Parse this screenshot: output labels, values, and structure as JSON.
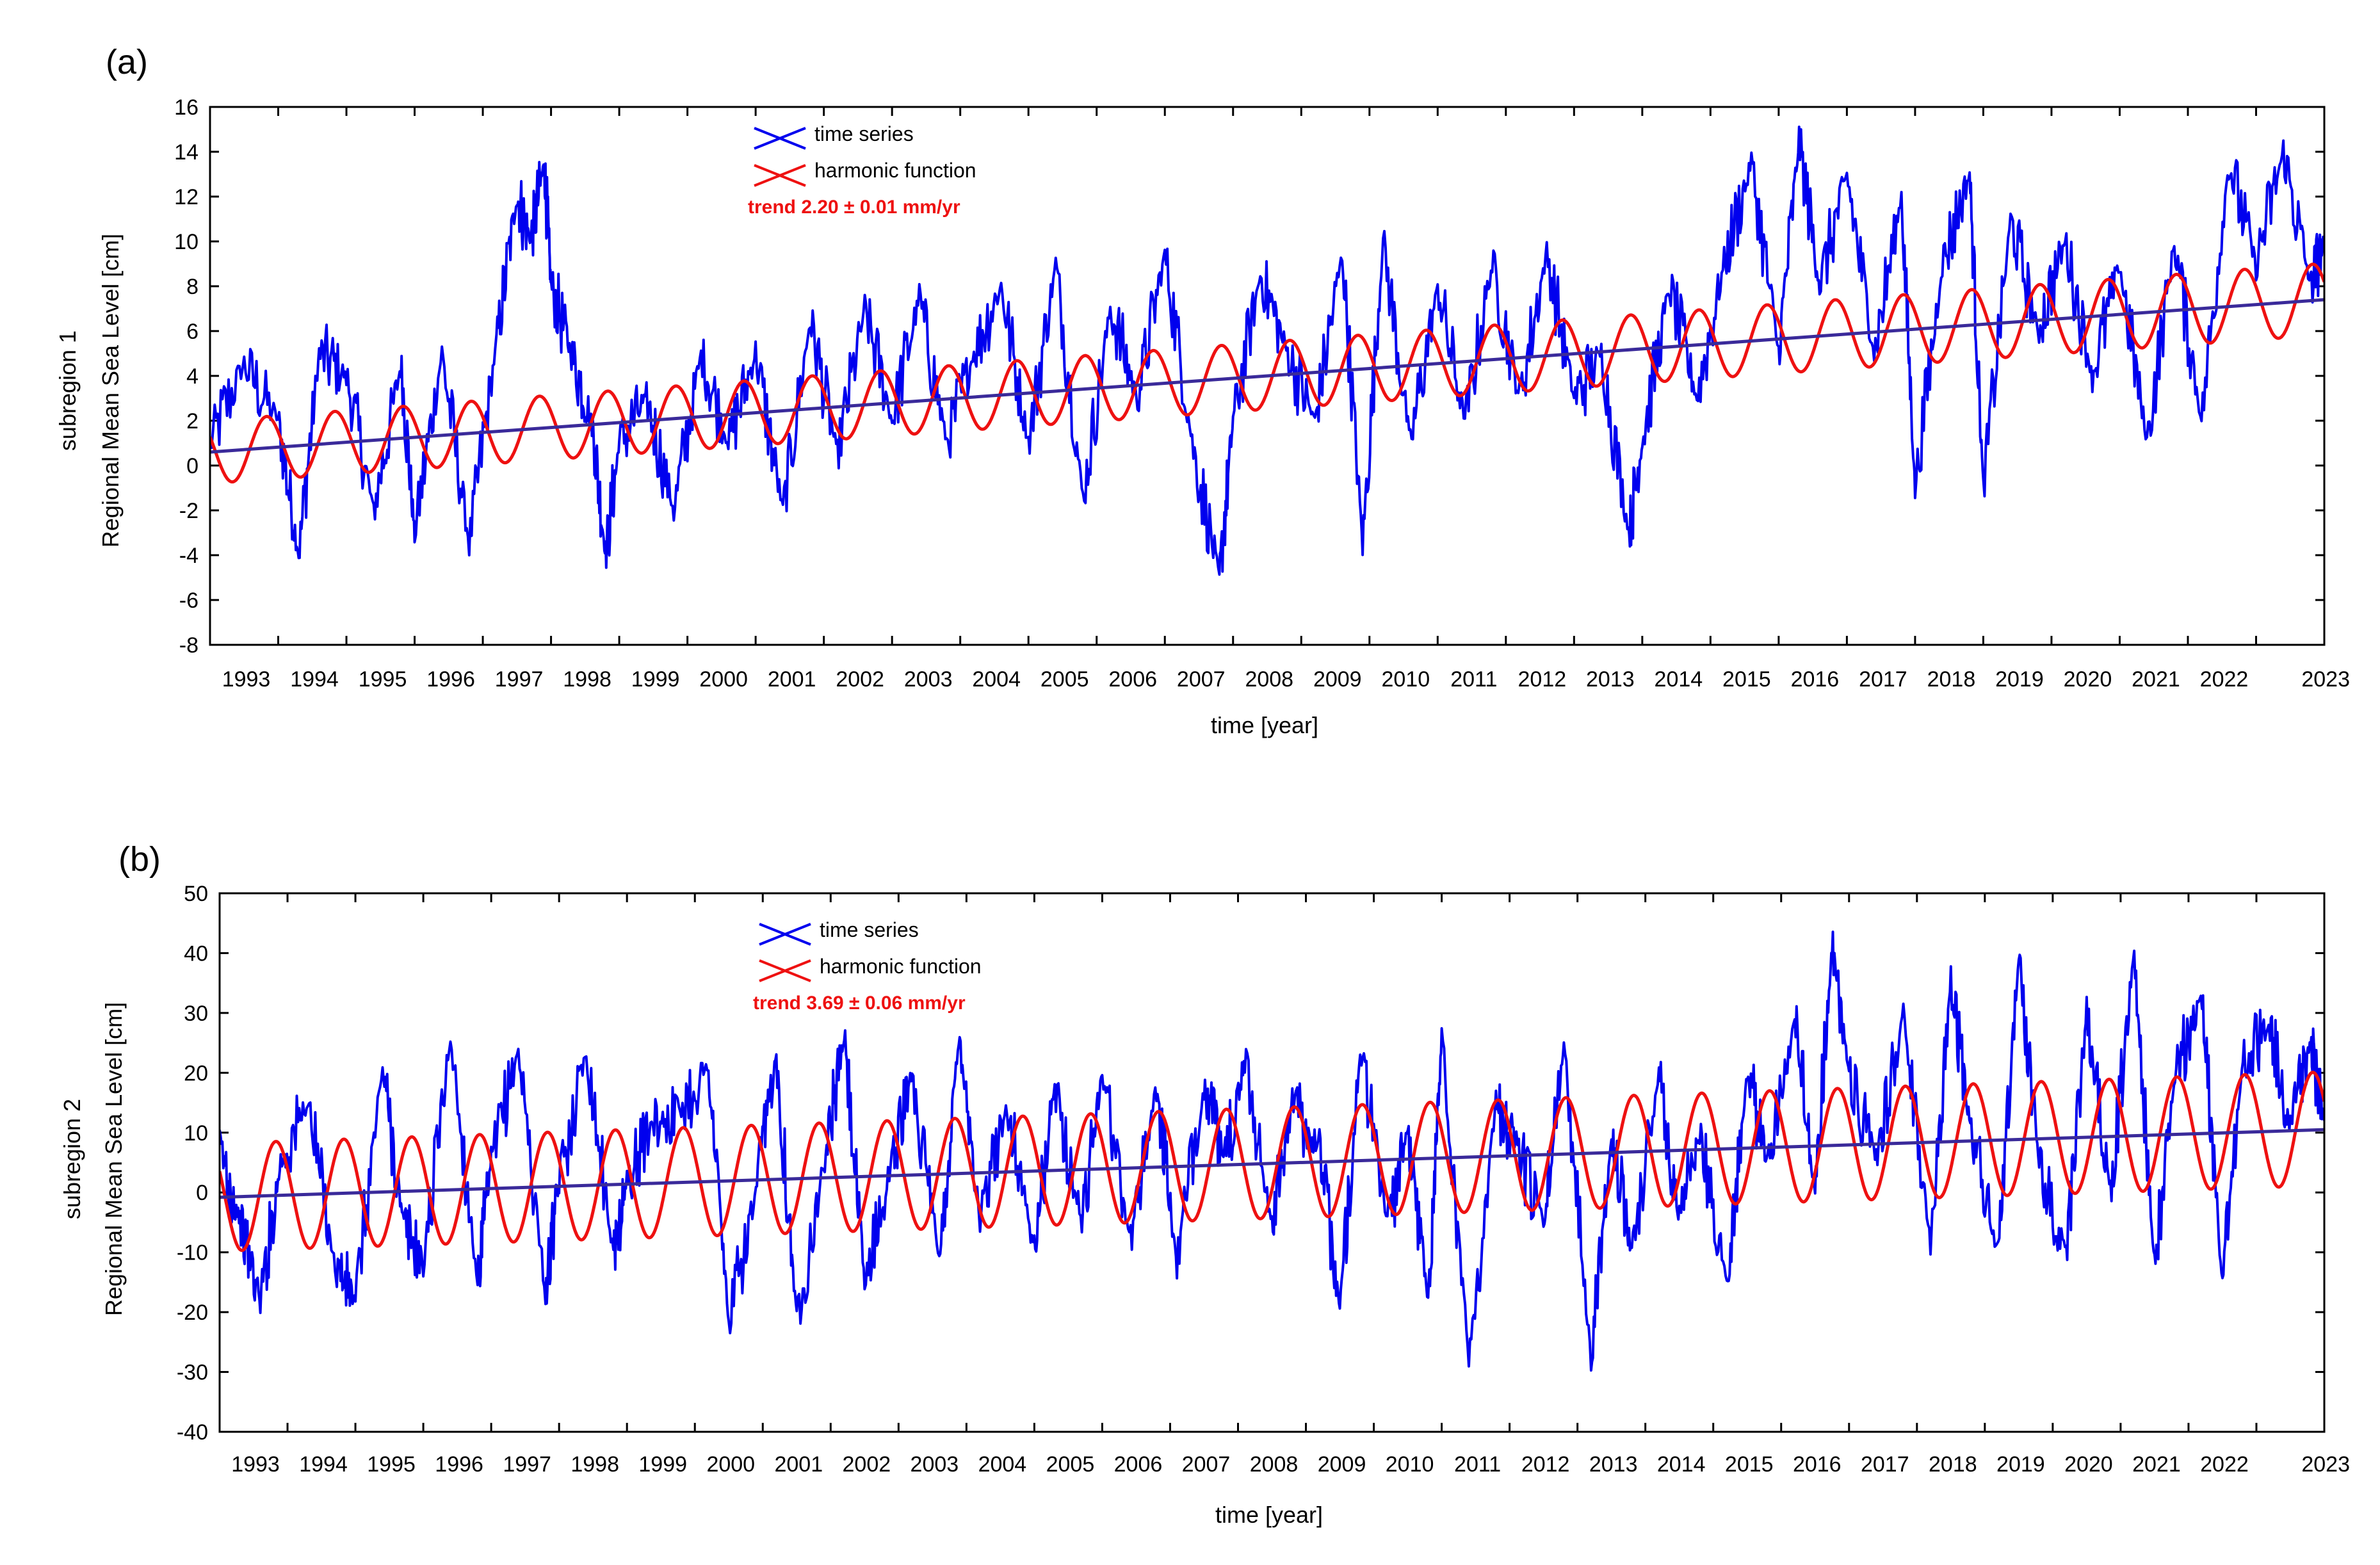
{
  "colors": {
    "series": "#0000ee",
    "harmonic": "#ee1111",
    "trend_line": "#3a2a9a",
    "trend_text": "#ee1111",
    "axes": "#000000"
  },
  "chart_data": [
    {
      "type": "line",
      "panel_label": "(a)",
      "ylabel_region": "subregion 1",
      "ylabel": "Regional Mean Sea Level [cm]",
      "xlabel": "time [year]",
      "xlim": [
        1992.0,
        2023.0
      ],
      "ylim": [
        -8,
        16
      ],
      "yticks": [
        -8,
        -6,
        -4,
        -2,
        0,
        2,
        4,
        6,
        8,
        10,
        12,
        14,
        16
      ],
      "xticks": [
        1993,
        1994,
        1995,
        1996,
        1997,
        1998,
        1999,
        2000,
        2001,
        2002,
        2003,
        2004,
        2005,
        2006,
        2007,
        2008,
        2009,
        2010,
        2011,
        2012,
        2013,
        2014,
        2015,
        2016,
        2017,
        2018,
        2019,
        2020,
        2021,
        2022,
        2023
      ],
      "legend": {
        "series_label": "time series",
        "harmonic_label": "harmonic function",
        "trend_label": "trend 2.20 ± 0.01 mm/yr",
        "position": "top-left"
      },
      "trend": {
        "x": [
          1992.0,
          2023.0
        ],
        "y": [
          0.6,
          7.4
        ]
      },
      "harmonic": {
        "intercept_1992": 0.6,
        "slope_cm_per_yr": 0.22,
        "amplitude": [
          1.4,
          1.6
        ],
        "phase_peak_fraction": 0.83
      },
      "series": {
        "name": "time series",
        "x": [
          1992.0,
          1992.5,
          1993.0,
          1993.3,
          1993.6,
          1994.0,
          1994.4,
          1994.8,
          1995.0,
          1995.4,
          1995.8,
          1996.2,
          1996.5,
          1996.7,
          1996.9,
          1997.0,
          1997.3,
          1997.6,
          1997.8,
          1998.0,
          1998.4,
          1998.8,
          1999.2,
          1999.6,
          2000.0,
          2000.4,
          2000.8,
          2001.2,
          2001.6,
          2002.0,
          2002.4,
          2002.8,
          2003.2,
          2003.6,
          2004.0,
          2004.4,
          2004.8,
          2005.2,
          2005.6,
          2006.0,
          2006.4,
          2006.8,
          2007.0,
          2007.4,
          2007.8,
          2008.2,
          2008.6,
          2008.9,
          2009.2,
          2009.6,
          2010.0,
          2010.4,
          2010.8,
          2011.2,
          2011.6,
          2012.0,
          2012.4,
          2012.8,
          2013.0,
          2013.4,
          2013.8,
          2014.2,
          2014.6,
          2015.0,
          2015.3,
          2015.6,
          2016.0,
          2016.4,
          2016.8,
          2017.0,
          2017.4,
          2017.8,
          2018.0,
          2018.4,
          2018.8,
          2019.2,
          2019.6,
          2020.0,
          2020.4,
          2020.8,
          2021.2,
          2021.6,
          2022.0,
          2022.4,
          2022.8,
          2023.0
        ],
        "y": [
          1.0,
          4.5,
          2.0,
          -4.0,
          5.0,
          4.0,
          -2.0,
          4.5,
          -3.0,
          5.0,
          -3.5,
          5.5,
          12.0,
          10.0,
          13.5,
          8.0,
          5.0,
          2.0,
          -4.0,
          1.0,
          3.0,
          -2.0,
          5.0,
          1.0,
          5.0,
          -2.0,
          6.5,
          0.5,
          7.0,
          2.0,
          7.5,
          1.0,
          5.0,
          8.0,
          1.0,
          9.0,
          -1.5,
          7.0,
          3.0,
          9.5,
          1.0,
          -5.0,
          2.0,
          8.5,
          5.0,
          2.0,
          9.5,
          -3.5,
          10.0,
          1.0,
          8.0,
          2.0,
          9.0,
          3.0,
          9.5,
          3.0,
          5.0,
          -3.0,
          1.0,
          8.0,
          3.0,
          9.0,
          13.5,
          5.0,
          14.5,
          8.0,
          13.0,
          5.0,
          12.0,
          -1.0,
          9.0,
          13.0,
          -1.0,
          11.0,
          6.0,
          10.0,
          4.0,
          9.0,
          1.0,
          10.0,
          2.0,
          13.5,
          9.0,
          14.0,
          8.0,
          10.0
        ]
      }
    },
    {
      "type": "line",
      "panel_label": "(b)",
      "ylabel_region": "subregion 2",
      "ylabel": "Regional Mean Sea Level [cm]",
      "xlabel": "time [year]",
      "xlim": [
        1992.0,
        2023.0
      ],
      "ylim": [
        -40,
        50
      ],
      "yticks": [
        -40,
        -30,
        -20,
        -10,
        0,
        10,
        20,
        30,
        40,
        50
      ],
      "xticks": [
        1993,
        1994,
        1995,
        1996,
        1997,
        1998,
        1999,
        2000,
        2001,
        2002,
        2003,
        2004,
        2005,
        2006,
        2007,
        2008,
        2009,
        2010,
        2011,
        2012,
        2013,
        2014,
        2015,
        2016,
        2017,
        2018,
        2019,
        2020,
        2021,
        2022,
        2023
      ],
      "legend": {
        "series_label": "time series",
        "harmonic_label": "harmonic function",
        "trend_label": "trend 3.69 ± 0.06 mm/yr",
        "position": "top-left"
      },
      "trend": {
        "x": [
          1992.0,
          2023.0
        ],
        "y": [
          -0.8,
          10.5
        ]
      },
      "harmonic": {
        "intercept_1992": -0.8,
        "slope_cm_per_yr": 0.369,
        "amplitude": [
          9.0,
          9.5
        ],
        "phase_peak_fraction": 0.83
      },
      "series": {
        "name": "time series",
        "x": [
          1992.0,
          1992.3,
          1992.6,
          1992.9,
          1993.3,
          1993.7,
          1994.0,
          1994.4,
          1994.7,
          1995.0,
          1995.4,
          1995.8,
          1996.0,
          1996.4,
          1996.8,
          1997.0,
          1997.4,
          1997.8,
          1998.0,
          1998.4,
          1998.8,
          1999.2,
          1999.5,
          1999.9,
          2000.2,
          2000.5,
          2000.9,
          2001.2,
          2001.5,
          2001.9,
          2002.2,
          2002.6,
          2002.9,
          2003.2,
          2003.6,
          2004.0,
          2004.3,
          2004.7,
          2005.0,
          2005.4,
          2005.8,
          2006.1,
          2006.5,
          2006.8,
          2007.1,
          2007.5,
          2007.8,
          2008.2,
          2008.5,
          2008.8,
          2009.2,
          2009.5,
          2009.8,
          2010.0,
          2010.4,
          2010.8,
          2011.1,
          2011.5,
          2011.8,
          2012.2,
          2012.5,
          2012.8,
          2013.2,
          2013.5,
          2013.8,
          2014.2,
          2014.5,
          2014.8,
          2015.2,
          2015.5,
          2015.75,
          2016.0,
          2016.4,
          2016.8,
          2017.2,
          2017.5,
          2017.8,
          2018.2,
          2018.5,
          2018.8,
          2019.2,
          2019.5,
          2019.85,
          2020.2,
          2020.5,
          2020.8,
          2021.2,
          2021.5,
          2021.8,
          2022.2,
          2022.5,
          2022.8,
          2023.0
        ],
        "y": [
          8.0,
          -5.0,
          -18.0,
          5.0,
          15.0,
          -12.0,
          -18.0,
          21.0,
          -5.0,
          -12.0,
          26.0,
          -15.0,
          5.0,
          24.0,
          -17.0,
          2.0,
          24.0,
          -10.0,
          2.0,
          12.0,
          14.0,
          21.0,
          -22.0,
          0.0,
          23.0,
          -21.0,
          5.0,
          26.0,
          -15.0,
          5.0,
          20.0,
          -12.0,
          27.0,
          -5.0,
          15.0,
          -10.0,
          18.0,
          -5.0,
          21.0,
          -8.0,
          18.0,
          -12.0,
          18.0,
          5.0,
          22.0,
          -5.0,
          15.0,
          8.0,
          -20.0,
          24.0,
          -5.0,
          10.0,
          -18.0,
          26.0,
          -28.0,
          15.0,
          8.0,
          -5.0,
          25.0,
          -27.0,
          10.0,
          -10.0,
          20.0,
          -5.0,
          10.0,
          -15.0,
          20.0,
          5.0,
          30.0,
          0.0,
          42.0,
          20.0,
          5.0,
          30.0,
          -8.0,
          35.0,
          10.0,
          -10.0,
          40.0,
          5.0,
          -10.0,
          30.0,
          0.0,
          40.0,
          -12.0,
          20.0,
          33.0,
          -15.0,
          22.0,
          28.0,
          10.0,
          25.0,
          12.0
        ]
      }
    }
  ]
}
